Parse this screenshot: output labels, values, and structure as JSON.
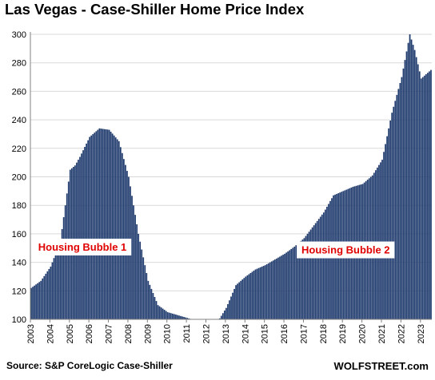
{
  "chart_data": {
    "type": "bar",
    "title": "Las Vegas - Case-Shiller Home Price Index",
    "xlabel": "",
    "ylabel": "",
    "ylim": [
      100,
      300
    ],
    "yticks": [
      100,
      120,
      140,
      160,
      180,
      200,
      220,
      240,
      260,
      280,
      300
    ],
    "x_start": "2003-01",
    "x_end": "2023-07",
    "x_tick_labels": [
      "2003",
      "2004",
      "2005",
      "2006",
      "2007",
      "2008",
      "2009",
      "2010",
      "2011",
      "2012",
      "2013",
      "2014",
      "2015",
      "2016",
      "2017",
      "2018",
      "2019",
      "2020",
      "2021",
      "2022",
      "2023"
    ],
    "grid": "horizontal",
    "bar_color": "#1f3b6e",
    "series": [
      {
        "frequency": "monthly",
        "anchors": [
          [
            "2003-01",
            122
          ],
          [
            "2003-07",
            127
          ],
          [
            "2004-01",
            137
          ],
          [
            "2004-07",
            155
          ],
          [
            "2004-10",
            180
          ],
          [
            "2005-01",
            205
          ],
          [
            "2005-04",
            208
          ],
          [
            "2005-07",
            214
          ],
          [
            "2006-01",
            228
          ],
          [
            "2006-07",
            234
          ],
          [
            "2007-01",
            233
          ],
          [
            "2007-07",
            225
          ],
          [
            "2008-01",
            200
          ],
          [
            "2008-07",
            160
          ],
          [
            "2009-01",
            127
          ],
          [
            "2009-07",
            110
          ],
          [
            "2010-01",
            105
          ],
          [
            "2010-07",
            103
          ],
          [
            "2011-01",
            101
          ],
          [
            "2011-07",
            99
          ],
          [
            "2012-01",
            95
          ],
          [
            "2012-07",
            97
          ],
          [
            "2013-01",
            108
          ],
          [
            "2013-07",
            124
          ],
          [
            "2014-01",
            130
          ],
          [
            "2014-07",
            135
          ],
          [
            "2015-01",
            138
          ],
          [
            "2015-07",
            142
          ],
          [
            "2016-01",
            146
          ],
          [
            "2016-07",
            151
          ],
          [
            "2017-01",
            157
          ],
          [
            "2017-07",
            166
          ],
          [
            "2018-01",
            175
          ],
          [
            "2018-07",
            187
          ],
          [
            "2019-01",
            190
          ],
          [
            "2019-07",
            193
          ],
          [
            "2020-01",
            195
          ],
          [
            "2020-07",
            201
          ],
          [
            "2021-01",
            212
          ],
          [
            "2021-07",
            245
          ],
          [
            "2022-01",
            270
          ],
          [
            "2022-06",
            300
          ],
          [
            "2022-09",
            289
          ],
          [
            "2023-01",
            269
          ],
          [
            "2023-07",
            275
          ]
        ]
      }
    ],
    "annotations": [
      {
        "text": "Housing Bubble 1",
        "x": "2005-09",
        "y": 151
      },
      {
        "text": "Housing Bubble 2",
        "x": "2019-03",
        "y": 149
      }
    ]
  },
  "source_label": "Source: S&P CoreLogic Case-Shiller",
  "brand_label": "WOLFSTREET.com"
}
